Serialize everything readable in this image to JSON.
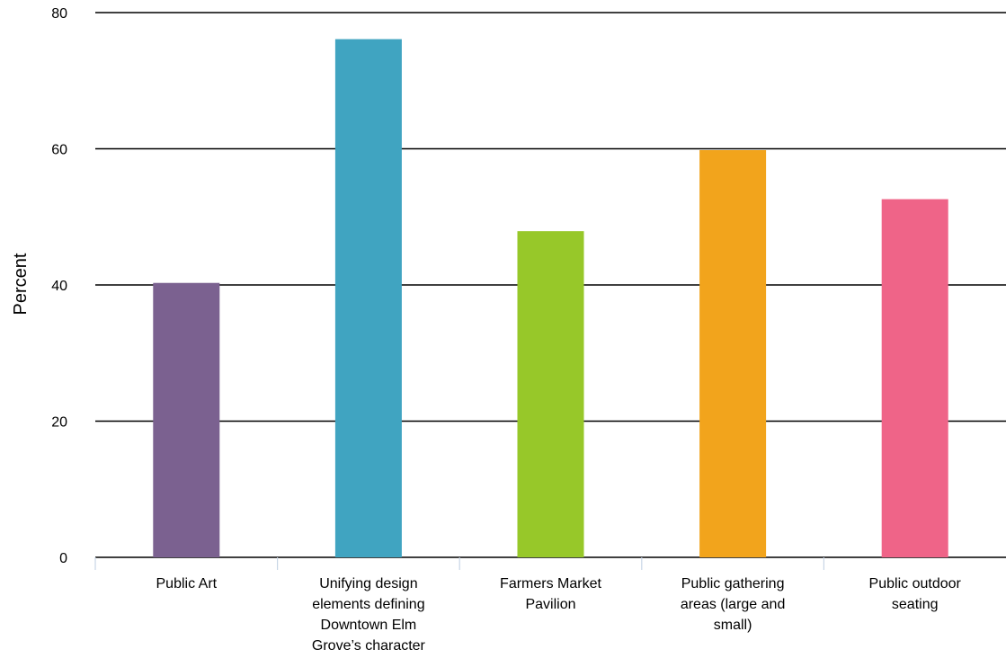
{
  "chart_data": {
    "type": "bar",
    "ylabel": "Percent",
    "ylim": [
      0,
      80
    ],
    "yticks": [
      "0",
      "20",
      "40",
      "60",
      "80"
    ],
    "grid": true,
    "categories": [
      [
        "Public Art"
      ],
      [
        "Unifying design",
        "elements defining",
        "Downtown Elm",
        "Grove’s character"
      ],
      [
        "Farmers Market",
        "Pavilion"
      ],
      [
        "Public gathering",
        "areas (large and",
        "small)"
      ],
      [
        "Public outdoor",
        "seating"
      ]
    ],
    "values": [
      40.3,
      76.1,
      47.9,
      59.8,
      52.6
    ],
    "colors": [
      "#7b6190",
      "#40a4c1",
      "#97c829",
      "#f2a41c",
      "#ef6488"
    ]
  }
}
